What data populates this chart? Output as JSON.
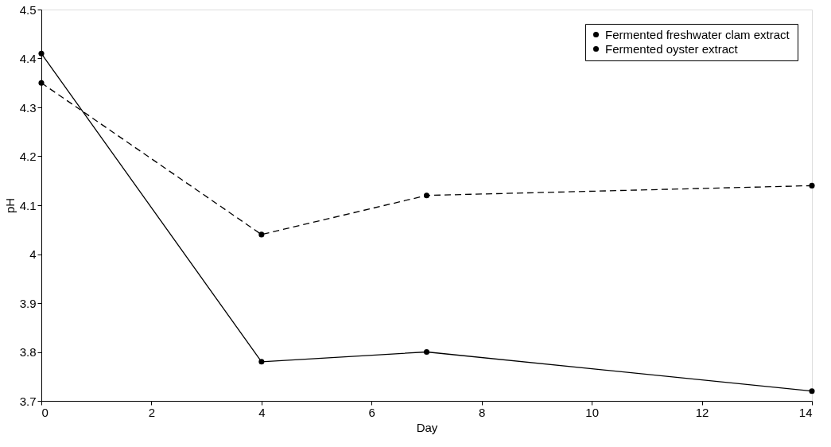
{
  "chart_data": {
    "type": "line",
    "xlabel": "Day",
    "ylabel": "pH",
    "x": [
      0,
      4,
      7,
      14
    ],
    "series": [
      {
        "name": "Fermented freshwater  clam extract",
        "color": "#000000",
        "values": [
          4.41,
          3.78,
          3.8,
          3.72
        ],
        "line_style": "solid",
        "marker": "circle"
      },
      {
        "name": "Fermented oyster extract",
        "color": "#000000",
        "values": [
          4.35,
          4.04,
          4.12,
          4.14
        ],
        "line_style": "dashed",
        "marker": "circle"
      }
    ],
    "xlim": [
      0,
      14
    ],
    "xticks": [
      0,
      2,
      4,
      6,
      8,
      10,
      12,
      14
    ],
    "ylim": [
      3.7,
      4.5
    ],
    "yticks": [
      3.7,
      3.8,
      3.9,
      4,
      4.1,
      4.2,
      4.3,
      4.4,
      4.5
    ],
    "grid": false,
    "legend": "top right"
  }
}
